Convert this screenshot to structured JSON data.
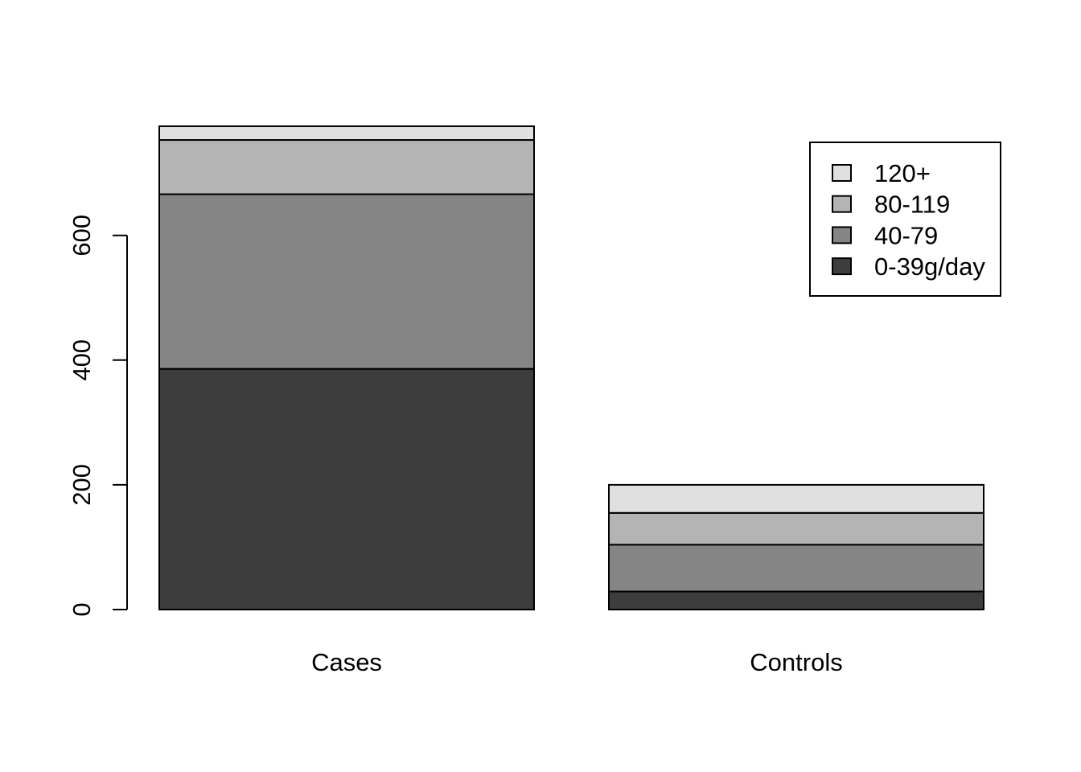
{
  "chart_data": {
    "type": "bar",
    "stacked": true,
    "categories": [
      "Cases",
      "Controls"
    ],
    "series": [
      {
        "name": "0-39g/day",
        "values": [
          386,
          29
        ],
        "color": "#3d3d3d"
      },
      {
        "name": "40-79",
        "values": [
          280,
          75
        ],
        "color": "#858585"
      },
      {
        "name": "80-119",
        "values": [
          87,
          51
        ],
        "color": "#b4b4b4"
      },
      {
        "name": "120+",
        "values": [
          22,
          45
        ],
        "color": "#e0e0e0"
      }
    ],
    "title": "",
    "xlabel": "",
    "ylabel": "",
    "ylim": [
      0,
      775
    ],
    "yticks": [
      "0",
      "200",
      "400",
      "600"
    ],
    "grid": false,
    "legend_position": "top-right",
    "legend_order": [
      "120+",
      "80-119",
      "40-79",
      "0-39g/day"
    ]
  }
}
